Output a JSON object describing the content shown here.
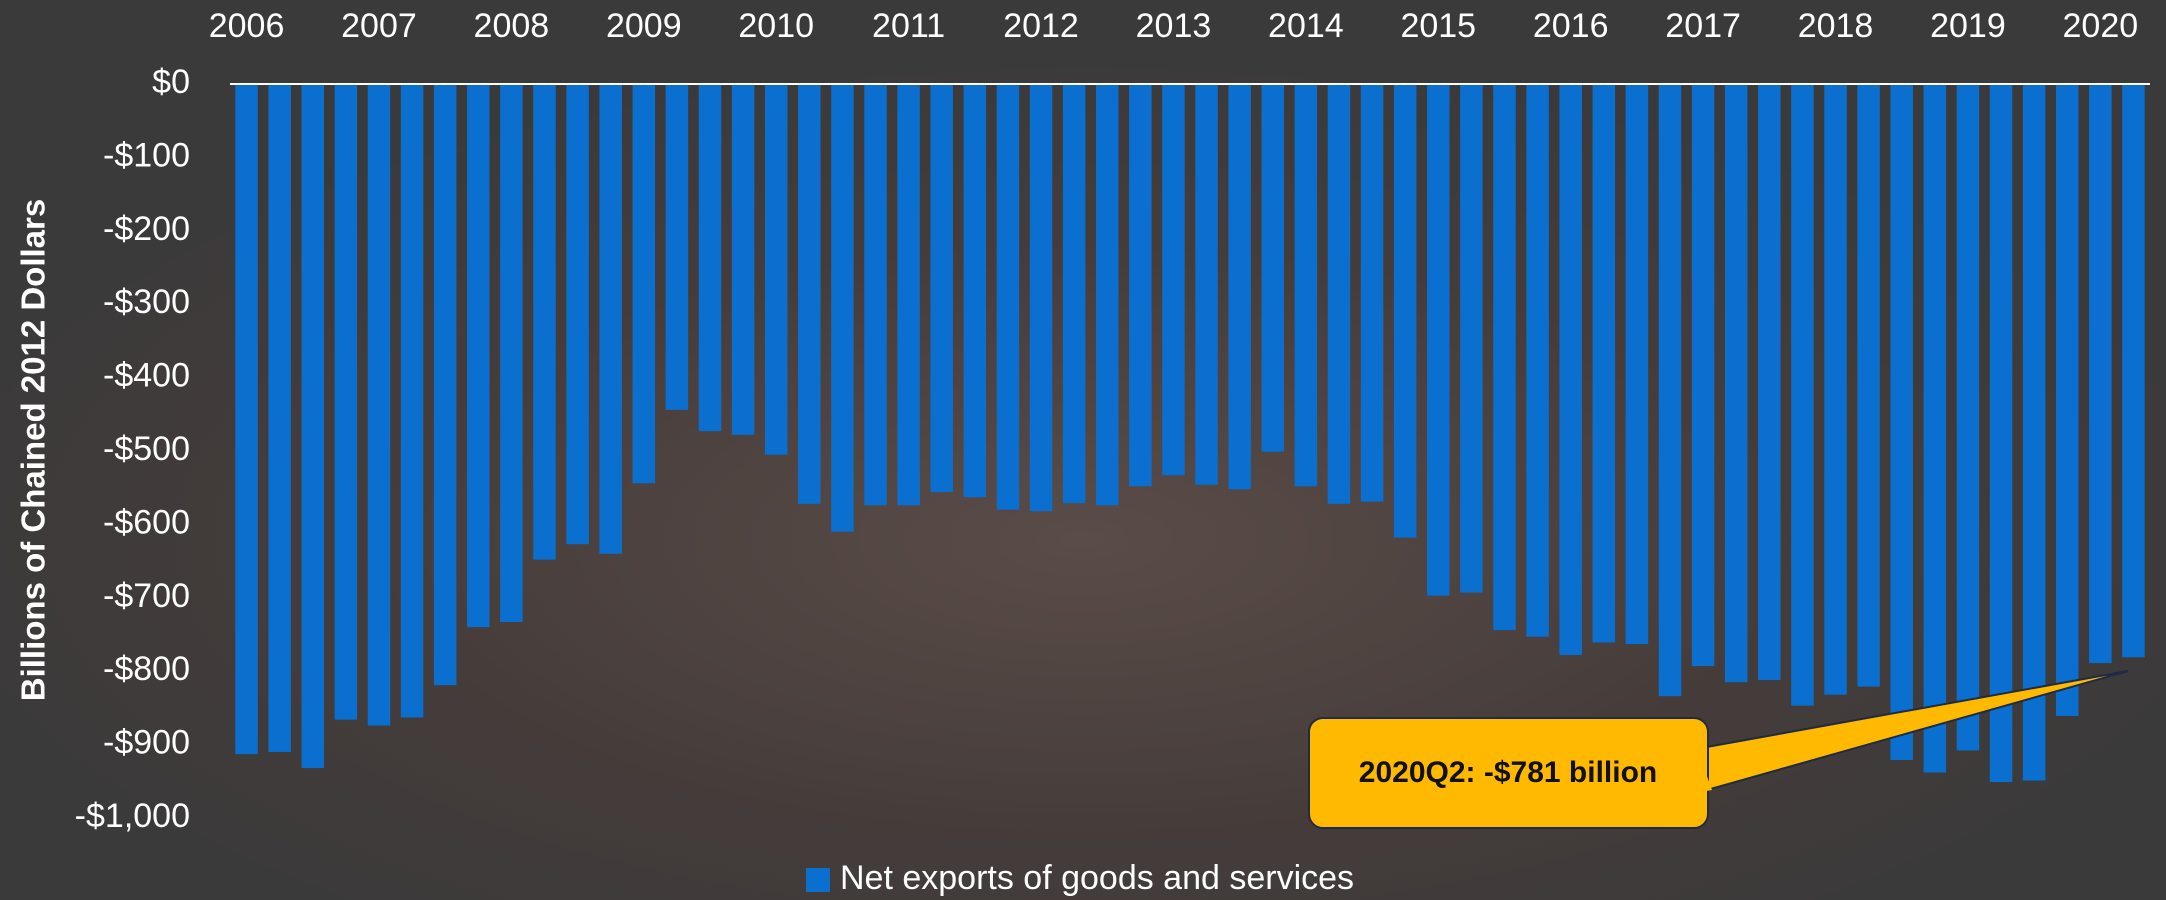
{
  "chart_data": {
    "type": "bar",
    "y_label": "Billions of Chained 2012 Dollars",
    "categories": [
      "2006",
      null,
      null,
      null,
      "2007",
      null,
      null,
      null,
      "2008",
      null,
      null,
      null,
      "2009",
      null,
      null,
      null,
      "2010",
      null,
      null,
      null,
      "2011",
      null,
      null,
      null,
      "2012",
      null,
      null,
      null,
      "2013",
      null,
      null,
      null,
      "2014",
      null,
      null,
      null,
      "2015",
      null,
      null,
      null,
      "2016",
      null,
      null,
      null,
      "2017",
      null,
      null,
      null,
      "2018",
      null,
      null,
      null,
      "2019",
      null,
      null,
      null,
      "2020",
      null
    ],
    "series": [
      {
        "name": "Net exports of goods and services",
        "color": "#0a6fcf",
        "values": [
          -913,
          -910,
          -932,
          -866,
          -874,
          -863,
          -819,
          -740,
          -733,
          -648,
          -627,
          -640,
          -544,
          -444,
          -473,
          -478,
          -505,
          -572,
          -610,
          -574,
          -574,
          -556,
          -563,
          -580,
          -582,
          -571,
          -574,
          -548,
          -533,
          -546,
          -552,
          -501,
          -548,
          -572,
          -569,
          -618,
          -697,
          -693,
          -744,
          -753,
          -778,
          -761,
          -763,
          -834,
          -793,
          -815,
          -812,
          -847,
          -832,
          -821,
          -921,
          -938,
          -908,
          -951,
          -949,
          -861,
          -789,
          -781
        ]
      }
    ],
    "ylim": [
      -1000,
      0
    ],
    "yticks": [
      {
        "value": 0,
        "label": "$0"
      },
      {
        "value": -100,
        "label": "-$100"
      },
      {
        "value": -200,
        "label": "-$200"
      },
      {
        "value": -300,
        "label": "-$300"
      },
      {
        "value": -400,
        "label": "-$400"
      },
      {
        "value": -500,
        "label": "-$500"
      },
      {
        "value": -600,
        "label": "-$600"
      },
      {
        "value": -700,
        "label": "-$700"
      },
      {
        "value": -800,
        "label": "-$800"
      },
      {
        "value": -900,
        "label": "-$900"
      },
      {
        "value": -1000,
        "label": "-$1,000"
      }
    ],
    "legend_position": "bottom",
    "annotations": [
      {
        "text": "2020Q2: -$781 billion"
      }
    ]
  }
}
